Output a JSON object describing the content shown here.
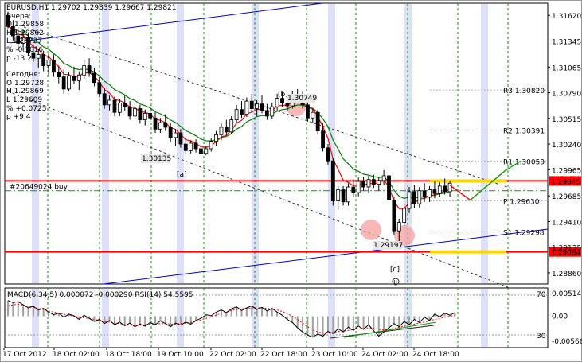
{
  "chart_data": {
    "type": "candlestick",
    "header": {
      "symbol": "EURUSD,H1",
      "open": "1.29702",
      "high": "1.29839",
      "low": "1.29667",
      "close": "1.29821"
    },
    "info_panel": [
      "Вчера:",
      "O 1.29858",
      "H 1.29862",
      "L 1.28727",
      "% -0.1016",
      "p -13.2",
      "Сегодня:",
      "O 1.29728",
      "H 1.29869",
      "L 1.29609",
      "% +0.0725",
      "p +9.4"
    ],
    "price_axis_ticks": [
      "1.31620",
      "1.31345",
      "1.31065",
      "1.30790",
      "1.30515",
      "1.30240",
      "1.29965",
      "1.29685",
      "1.29410",
      "1.29135",
      "1.28860"
    ],
    "price_range": [
      1.2874,
      1.3175
    ],
    "time_axis_labels": [
      "17 Oct 2012",
      "18 Oct 02:00",
      "18 Oct 18:00",
      "19 Oct 10:00",
      "22 Oct 02:00",
      "22 Oct 18:00",
      "23 Oct 10:00",
      "24 Oct 02:00",
      "24 Oct 18:00"
    ],
    "horizontal_levels": [
      {
        "label": "1.29845",
        "price": 1.29845,
        "color": "#ff0000",
        "badge": true
      },
      {
        "label": "1.29084",
        "price": 1.29084,
        "color": "#ff0000",
        "badge": true
      },
      {
        "label": "R3 1.30820",
        "price": 1.3082
      },
      {
        "label": "R2 1.30391",
        "price": 1.30391
      },
      {
        "label": "R1 1.30059",
        "price": 1.30059
      },
      {
        "label": "P 1.29630",
        "price": 1.2963
      },
      {
        "label": "S1 1.29298",
        "price": 1.29298
      }
    ],
    "pending_order": {
      "label": "#20649024 buy",
      "price": 1.2974
    },
    "wave_labels": [
      "[a]",
      "[b]",
      "[c]",
      "ii"
    ],
    "box_labels": [
      "1.30135",
      "1.30749",
      "1.29197"
    ],
    "candles": [
      {
        "o": 1.3162,
        "h": 1.3166,
        "l": 1.3148,
        "c": 1.315
      },
      {
        "o": 1.315,
        "h": 1.3157,
        "l": 1.3135,
        "c": 1.314
      },
      {
        "o": 1.314,
        "h": 1.3149,
        "l": 1.3126,
        "c": 1.3132
      },
      {
        "o": 1.3132,
        "h": 1.3146,
        "l": 1.3124,
        "c": 1.3138
      },
      {
        "o": 1.3138,
        "h": 1.3143,
        "l": 1.3118,
        "c": 1.3122
      },
      {
        "o": 1.3122,
        "h": 1.3131,
        "l": 1.3112,
        "c": 1.3116
      },
      {
        "o": 1.3116,
        "h": 1.3126,
        "l": 1.3106,
        "c": 1.312
      },
      {
        "o": 1.312,
        "h": 1.3124,
        "l": 1.3102,
        "c": 1.3108
      },
      {
        "o": 1.3108,
        "h": 1.3121,
        "l": 1.3098,
        "c": 1.3114
      },
      {
        "o": 1.3114,
        "h": 1.312,
        "l": 1.3096,
        "c": 1.3101
      },
      {
        "o": 1.3101,
        "h": 1.3108,
        "l": 1.3089,
        "c": 1.3096
      },
      {
        "o": 1.3096,
        "h": 1.3104,
        "l": 1.3078,
        "c": 1.3083
      },
      {
        "o": 1.3083,
        "h": 1.3101,
        "l": 1.3081,
        "c": 1.3097
      },
      {
        "o": 1.3097,
        "h": 1.3107,
        "l": 1.3088,
        "c": 1.3092
      },
      {
        "o": 1.3092,
        "h": 1.3102,
        "l": 1.3082,
        "c": 1.3098
      },
      {
        "o": 1.3098,
        "h": 1.3114,
        "l": 1.3094,
        "c": 1.3108
      },
      {
        "o": 1.3108,
        "h": 1.3116,
        "l": 1.3096,
        "c": 1.31
      },
      {
        "o": 1.31,
        "h": 1.3106,
        "l": 1.3086,
        "c": 1.309
      },
      {
        "o": 1.309,
        "h": 1.3096,
        "l": 1.3074,
        "c": 1.3078
      },
      {
        "o": 1.3078,
        "h": 1.3084,
        "l": 1.3062,
        "c": 1.3066
      },
      {
        "o": 1.3066,
        "h": 1.3076,
        "l": 1.306,
        "c": 1.3071
      },
      {
        "o": 1.3071,
        "h": 1.3075,
        "l": 1.3054,
        "c": 1.3058
      },
      {
        "o": 1.3058,
        "h": 1.3072,
        "l": 1.3054,
        "c": 1.3068
      },
      {
        "o": 1.3068,
        "h": 1.3077,
        "l": 1.306,
        "c": 1.3064
      },
      {
        "o": 1.3064,
        "h": 1.307,
        "l": 1.305,
        "c": 1.3054
      },
      {
        "o": 1.3054,
        "h": 1.3067,
        "l": 1.305,
        "c": 1.3062
      },
      {
        "o": 1.3062,
        "h": 1.3066,
        "l": 1.3046,
        "c": 1.305
      },
      {
        "o": 1.305,
        "h": 1.3061,
        "l": 1.3044,
        "c": 1.3057
      },
      {
        "o": 1.3057,
        "h": 1.3066,
        "l": 1.3048,
        "c": 1.3052
      },
      {
        "o": 1.3052,
        "h": 1.3058,
        "l": 1.3036,
        "c": 1.304
      },
      {
        "o": 1.304,
        "h": 1.3052,
        "l": 1.3036,
        "c": 1.3047
      },
      {
        "o": 1.3047,
        "h": 1.3056,
        "l": 1.3038,
        "c": 1.3042
      },
      {
        "o": 1.3042,
        "h": 1.3047,
        "l": 1.3026,
        "c": 1.3031
      },
      {
        "o": 1.3031,
        "h": 1.304,
        "l": 1.3022,
        "c": 1.3036
      },
      {
        "o": 1.3036,
        "h": 1.304,
        "l": 1.302,
        "c": 1.3024
      },
      {
        "o": 1.3024,
        "h": 1.3031,
        "l": 1.3013,
        "c": 1.3017
      },
      {
        "o": 1.3017,
        "h": 1.3028,
        "l": 1.3014,
        "c": 1.3025
      },
      {
        "o": 1.3025,
        "h": 1.3029,
        "l": 1.3015,
        "c": 1.3019
      },
      {
        "o": 1.3019,
        "h": 1.3024,
        "l": 1.301,
        "c": 1.3014
      },
      {
        "o": 1.3014,
        "h": 1.3022,
        "l": 1.3012,
        "c": 1.3019
      },
      {
        "o": 1.3019,
        "h": 1.303,
        "l": 1.3016,
        "c": 1.3027
      },
      {
        "o": 1.3027,
        "h": 1.3038,
        "l": 1.3022,
        "c": 1.3034
      },
      {
        "o": 1.3034,
        "h": 1.3046,
        "l": 1.3028,
        "c": 1.3042
      },
      {
        "o": 1.3042,
        "h": 1.305,
        "l": 1.3033,
        "c": 1.3037
      },
      {
        "o": 1.3037,
        "h": 1.3054,
        "l": 1.3035,
        "c": 1.305
      },
      {
        "o": 1.305,
        "h": 1.3066,
        "l": 1.3046,
        "c": 1.3061
      },
      {
        "o": 1.3061,
        "h": 1.307,
        "l": 1.3052,
        "c": 1.3056
      },
      {
        "o": 1.3056,
        "h": 1.3074,
        "l": 1.3053,
        "c": 1.307
      },
      {
        "o": 1.307,
        "h": 1.3078,
        "l": 1.3058,
        "c": 1.3062
      },
      {
        "o": 1.3062,
        "h": 1.3071,
        "l": 1.3054,
        "c": 1.3067
      },
      {
        "o": 1.3067,
        "h": 1.3076,
        "l": 1.3057,
        "c": 1.306
      },
      {
        "o": 1.306,
        "h": 1.3067,
        "l": 1.305,
        "c": 1.3054
      },
      {
        "o": 1.3054,
        "h": 1.3068,
        "l": 1.3051,
        "c": 1.3064
      },
      {
        "o": 1.3064,
        "h": 1.3078,
        "l": 1.306,
        "c": 1.3073
      },
      {
        "o": 1.3073,
        "h": 1.308,
        "l": 1.3064,
        "c": 1.3068
      },
      {
        "o": 1.3068,
        "h": 1.3077,
        "l": 1.306,
        "c": 1.3065
      },
      {
        "o": 1.3065,
        "h": 1.3081,
        "l": 1.3062,
        "c": 1.3076
      },
      {
        "o": 1.3076,
        "h": 1.3083,
        "l": 1.3069,
        "c": 1.3073
      },
      {
        "o": 1.3073,
        "h": 1.308,
        "l": 1.3062,
        "c": 1.3066
      },
      {
        "o": 1.3066,
        "h": 1.3072,
        "l": 1.3048,
        "c": 1.3052
      },
      {
        "o": 1.3052,
        "h": 1.3062,
        "l": 1.3047,
        "c": 1.3058
      },
      {
        "o": 1.3058,
        "h": 1.3061,
        "l": 1.3034,
        "c": 1.3038
      },
      {
        "o": 1.3038,
        "h": 1.3046,
        "l": 1.3016,
        "c": 1.302
      },
      {
        "o": 1.302,
        "h": 1.3024,
        "l": 1.3002,
        "c": 1.3006
      },
      {
        "o": 1.3006,
        "h": 1.3009,
        "l": 1.2958,
        "c": 1.2963
      },
      {
        "o": 1.2963,
        "h": 1.2979,
        "l": 1.2954,
        "c": 1.2975
      },
      {
        "o": 1.2975,
        "h": 1.2979,
        "l": 1.2958,
        "c": 1.2962
      },
      {
        "o": 1.2962,
        "h": 1.2982,
        "l": 1.2958,
        "c": 1.2978
      },
      {
        "o": 1.2978,
        "h": 1.2986,
        "l": 1.2968,
        "c": 1.2972
      },
      {
        "o": 1.2972,
        "h": 1.2988,
        "l": 1.2968,
        "c": 1.2984
      },
      {
        "o": 1.2984,
        "h": 1.2989,
        "l": 1.2974,
        "c": 1.2978
      },
      {
        "o": 1.2978,
        "h": 1.299,
        "l": 1.2972,
        "c": 1.2986
      },
      {
        "o": 1.2986,
        "h": 1.2991,
        "l": 1.2977,
        "c": 1.2981
      },
      {
        "o": 1.2981,
        "h": 1.2989,
        "l": 1.2974,
        "c": 1.2985
      },
      {
        "o": 1.2985,
        "h": 1.2996,
        "l": 1.298,
        "c": 1.299
      },
      {
        "o": 1.299,
        "h": 1.2994,
        "l": 1.296,
        "c": 1.2964
      },
      {
        "o": 1.2964,
        "h": 1.2968,
        "l": 1.2927,
        "c": 1.2931
      },
      {
        "o": 1.2931,
        "h": 1.2944,
        "l": 1.2918,
        "c": 1.294
      },
      {
        "o": 1.294,
        "h": 1.296,
        "l": 1.2936,
        "c": 1.2955
      },
      {
        "o": 1.2955,
        "h": 1.2978,
        "l": 1.295,
        "c": 1.2973
      },
      {
        "o": 1.2973,
        "h": 1.298,
        "l": 1.2955,
        "c": 1.296
      },
      {
        "o": 1.296,
        "h": 1.2978,
        "l": 1.2956,
        "c": 1.2974
      },
      {
        "o": 1.2974,
        "h": 1.2982,
        "l": 1.2962,
        "c": 1.2967
      },
      {
        "o": 1.2967,
        "h": 1.2979,
        "l": 1.2962,
        "c": 1.2975
      },
      {
        "o": 1.2975,
        "h": 1.2984,
        "l": 1.2966,
        "c": 1.2971
      },
      {
        "o": 1.2971,
        "h": 1.2983,
        "l": 1.2967,
        "c": 1.2979
      },
      {
        "o": 1.2979,
        "h": 1.2987,
        "l": 1.297,
        "c": 1.2973
      },
      {
        "o": 1.2973,
        "h": 1.2984,
        "l": 1.2967,
        "c": 1.2982
      }
    ],
    "forecast_path": [
      [
        1.298,
        0
      ],
      [
        1.2964,
        4
      ],
      [
        1.2996,
        11
      ],
      [
        1.3006,
        14
      ]
    ],
    "oscillator": {
      "label": "MACD(6,34,5) 0.000072 -0.000290  RSI(14) 54.5595",
      "right_ticks": [
        "0.00514",
        "0.00",
        "-0.00566"
      ],
      "rsi_levels": [
        "70",
        "30"
      ],
      "range": [
        -0.006,
        0.0054
      ],
      "macd": [
        0.003,
        0.0026,
        0.0028,
        0.0022,
        0.0016,
        0.0019,
        0.0012,
        0.0015,
        0.0008,
        0.0003,
        0.0006,
        -0.0002,
        0.0004,
        0.0001,
        -0.0006,
        0.0002,
        -0.0004,
        -0.001,
        -0.0006,
        -0.0014,
        -0.0008,
        -0.0016,
        -0.0011,
        -0.0018,
        -0.0013,
        -0.002,
        -0.0015,
        -0.0019,
        -0.0012,
        -0.0016,
        -0.0009,
        -0.0014,
        -0.002,
        -0.0013,
        -0.0017,
        -0.0011,
        -0.0015,
        -0.0008,
        -0.0004,
        0.0003,
        0.0001,
        0.0008,
        0.0012,
        0.0007,
        0.0014,
        0.0018,
        0.0011,
        0.0016,
        0.002,
        0.0013,
        0.0017,
        0.001,
        0.0015,
        0.0008,
        0.0002,
        -0.0006,
        -0.0012,
        -0.0022,
        -0.003,
        -0.0036,
        -0.004,
        -0.0034,
        -0.0038,
        -0.0029,
        -0.0033,
        -0.0024,
        -0.003,
        -0.0021,
        -0.0027,
        -0.0019,
        -0.0025,
        -0.0016,
        -0.0028,
        -0.0038,
        -0.003,
        -0.0022,
        -0.0014,
        -0.002,
        -0.001,
        -0.0016,
        -0.0006,
        -0.0012,
        -0.0002,
        -0.0008,
        0.0004,
        -0.0001,
        0.0006,
        0.0002,
        0.0007
      ],
      "signal": [
        0.002,
        0.0022,
        0.0023,
        0.0021,
        0.0019,
        0.0017,
        0.0015,
        0.0013,
        0.001,
        0.0008,
        0.0006,
        0.0004,
        0.0002,
        0.0,
        -0.0002,
        -0.0003,
        -0.0004,
        -0.0006,
        -0.0008,
        -0.001,
        -0.0011,
        -0.0013,
        -0.0014,
        -0.0016,
        -0.0016,
        -0.0017,
        -0.0017,
        -0.0016,
        -0.0015,
        -0.0015,
        -0.0014,
        -0.0014,
        -0.0015,
        -0.0015,
        -0.0014,
        -0.0013,
        -0.0012,
        -0.001,
        -0.0007,
        -0.0004,
        -0.0001,
        0.0002,
        0.0006,
        0.0008,
        0.0011,
        0.0013,
        0.0014,
        0.0015,
        0.0016,
        0.0016,
        0.0016,
        0.0015,
        0.0014,
        0.0012,
        0.0009,
        0.0005,
        0.0,
        -0.0006,
        -0.0013,
        -0.002,
        -0.0026,
        -0.003,
        -0.0032,
        -0.0032,
        -0.0031,
        -0.0029,
        -0.0028,
        -0.0027,
        -0.0025,
        -0.0024,
        -0.0023,
        -0.0022,
        -0.0023,
        -0.0025,
        -0.0026,
        -0.0025,
        -0.0023,
        -0.0021,
        -0.0019,
        -0.0017,
        -0.0015,
        -0.0013,
        -0.0011,
        -0.0009,
        -0.0006,
        -0.0004,
        -0.0002,
        0.0,
        0.0002
      ]
    }
  }
}
